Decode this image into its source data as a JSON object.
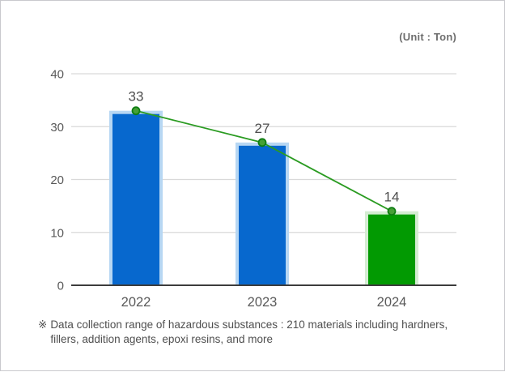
{
  "unit_label": "(Unit : Ton)",
  "footnote": {
    "marker": "※",
    "lines": [
      "Data collection range of hazardous substances : 210 materials including hardners,",
      "fillers, addition agents, epoxi resins, and more"
    ]
  },
  "chart_data": {
    "type": "bar",
    "subtype": "bar-with-line-overlay",
    "title": "",
    "unit": "Ton",
    "categories": [
      "2022",
      "2023",
      "2024"
    ],
    "values": [
      33,
      27,
      14
    ],
    "line_values": [
      33,
      27,
      14
    ],
    "data_labels": [
      "33",
      "27",
      "14"
    ],
    "xlabel": "",
    "ylabel": "",
    "ylim": [
      0,
      40
    ],
    "yticks": [
      0,
      10,
      20,
      30,
      40
    ],
    "grid": true,
    "legend_position": "none",
    "colors": {
      "bar_fill": [
        "#0768ce",
        "#0768ce",
        "#029a02"
      ],
      "bar_border": [
        "#b7d7f3",
        "#b7d7f3",
        "#d4ecd2"
      ],
      "line": "#2a9b21",
      "marker_fill": "#46a036",
      "marker_stroke": "#0e7d12",
      "gridline": "#d9d9d9",
      "axis": "#3c3c3c"
    }
  }
}
